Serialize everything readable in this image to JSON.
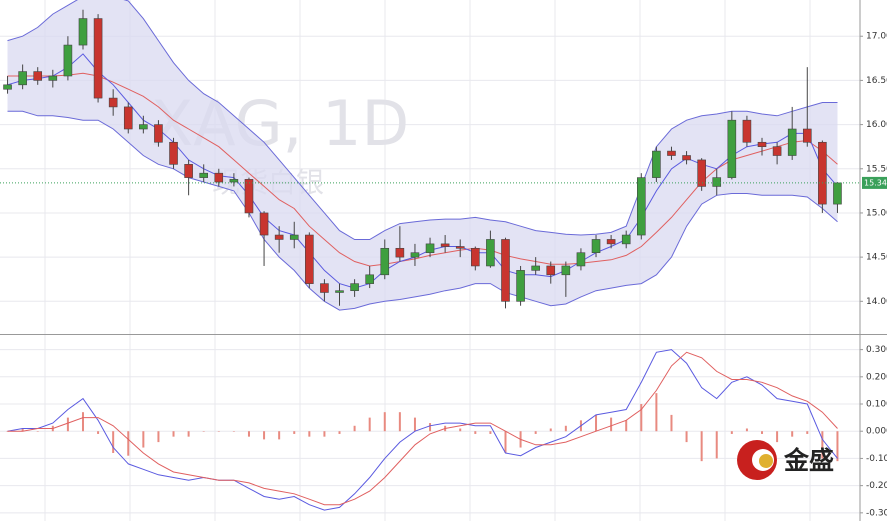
{
  "chart_data": [
    {
      "type": "candlestick",
      "title": "XAG, 1D",
      "subtitle": "现货白银",
      "open": [
        16.4,
        16.45,
        16.6,
        16.5,
        16.55,
        16.9,
        17.2,
        16.3,
        16.2,
        15.95,
        16.0,
        15.8,
        15.55,
        15.4,
        15.45,
        15.35,
        15.38,
        15.0,
        14.75,
        14.7,
        14.75,
        14.2,
        14.1,
        14.12,
        14.2,
        14.3,
        14.6,
        14.5,
        14.55,
        14.65,
        14.62,
        14.6,
        14.4,
        14.7,
        14.0,
        14.35,
        14.4,
        14.3,
        14.4,
        14.55,
        14.7,
        14.65,
        14.75,
        15.4,
        15.7,
        15.65,
        15.6,
        15.3,
        15.4,
        16.05,
        15.8,
        15.75,
        15.65,
        15.95,
        15.8,
        15.1
      ],
      "high": [
        16.55,
        16.68,
        16.65,
        16.62,
        17.0,
        17.3,
        17.25,
        16.4,
        16.25,
        16.1,
        16.05,
        15.85,
        15.6,
        15.55,
        15.5,
        15.45,
        15.4,
        15.02,
        14.85,
        14.9,
        14.78,
        14.25,
        14.2,
        14.25,
        14.4,
        14.7,
        14.85,
        14.65,
        14.72,
        14.75,
        14.7,
        14.62,
        14.8,
        14.72,
        14.4,
        14.5,
        14.45,
        14.45,
        14.6,
        14.75,
        14.75,
        14.8,
        15.45,
        15.75,
        15.75,
        15.7,
        15.62,
        15.5,
        16.15,
        16.1,
        15.85,
        15.8,
        16.2,
        16.65,
        15.82,
        15.35
      ],
      "low": [
        16.35,
        16.4,
        16.45,
        16.42,
        16.5,
        16.85,
        16.25,
        16.1,
        15.9,
        15.9,
        15.75,
        15.5,
        15.2,
        15.35,
        15.3,
        15.3,
        14.95,
        14.4,
        14.55,
        14.6,
        14.15,
        14.0,
        13.95,
        14.05,
        14.15,
        14.25,
        14.45,
        14.4,
        14.5,
        14.55,
        14.5,
        14.35,
        14.38,
        13.92,
        13.95,
        14.3,
        14.2,
        14.05,
        14.35,
        14.5,
        14.6,
        14.6,
        14.7,
        15.35,
        15.6,
        15.55,
        15.25,
        15.2,
        15.38,
        15.75,
        15.65,
        15.55,
        15.6,
        15.75,
        15.0,
        15.0
      ],
      "close": [
        16.45,
        16.6,
        16.5,
        16.55,
        16.9,
        17.2,
        16.3,
        16.2,
        15.95,
        16.0,
        15.8,
        15.55,
        15.4,
        15.45,
        15.35,
        15.38,
        15.0,
        14.75,
        14.7,
        14.75,
        14.2,
        14.1,
        14.12,
        14.2,
        14.3,
        14.6,
        14.5,
        14.55,
        14.65,
        14.62,
        14.6,
        14.4,
        14.7,
        14.0,
        14.35,
        14.4,
        14.3,
        14.4,
        14.55,
        14.7,
        14.65,
        14.75,
        15.4,
        15.7,
        15.65,
        15.6,
        15.3,
        15.4,
        16.05,
        15.8,
        15.75,
        15.65,
        15.95,
        15.8,
        15.1,
        15.34
      ],
      "upper": [
        16.95,
        17.0,
        17.1,
        17.25,
        17.35,
        17.45,
        17.45,
        17.45,
        17.4,
        17.2,
        16.95,
        16.7,
        16.5,
        16.35,
        16.25,
        16.1,
        15.95,
        15.8,
        15.6,
        15.4,
        15.2,
        15.0,
        14.8,
        14.7,
        14.7,
        14.8,
        14.88,
        14.9,
        14.92,
        14.93,
        14.93,
        14.95,
        14.92,
        14.9,
        14.85,
        14.8,
        14.78,
        14.76,
        14.75,
        14.76,
        14.78,
        14.85,
        15.3,
        15.75,
        15.95,
        16.05,
        16.1,
        16.12,
        16.15,
        16.15,
        16.12,
        16.1,
        16.15,
        16.2,
        16.25,
        16.25
      ],
      "middle": [
        16.55,
        16.55,
        16.55,
        16.55,
        16.56,
        16.58,
        16.55,
        16.48,
        16.4,
        16.32,
        16.2,
        16.05,
        15.95,
        15.85,
        15.75,
        15.6,
        15.45,
        15.3,
        15.15,
        15.05,
        14.85,
        14.7,
        14.55,
        14.45,
        14.4,
        14.42,
        14.45,
        14.48,
        14.52,
        14.55,
        14.58,
        14.6,
        14.58,
        14.52,
        14.48,
        14.45,
        14.42,
        14.42,
        14.43,
        14.45,
        14.47,
        14.52,
        14.62,
        14.78,
        14.95,
        15.15,
        15.35,
        15.5,
        15.6,
        15.65,
        15.7,
        15.75,
        15.8,
        15.82,
        15.7,
        15.55
      ],
      "lower": [
        16.15,
        16.15,
        16.1,
        16.1,
        16.08,
        16.05,
        16.05,
        15.95,
        15.8,
        15.65,
        15.55,
        15.5,
        15.4,
        15.35,
        15.3,
        15.25,
        15.0,
        14.7,
        14.5,
        14.35,
        14.15,
        14.0,
        13.9,
        13.92,
        13.97,
        14.0,
        14.02,
        14.05,
        14.08,
        14.12,
        14.15,
        14.2,
        14.2,
        14.1,
        14.05,
        14.0,
        13.95,
        13.97,
        14.05,
        14.12,
        14.15,
        14.18,
        14.2,
        14.3,
        14.5,
        14.85,
        15.1,
        15.2,
        15.22,
        15.22,
        15.2,
        15.2,
        15.2,
        15.18,
        15.05,
        14.9
      ],
      "fast": [
        16.45,
        16.5,
        16.52,
        16.55,
        16.65,
        16.8,
        16.6,
        16.45,
        16.25,
        16.05,
        15.95,
        15.8,
        15.6,
        15.5,
        15.42,
        15.4,
        15.2,
        14.95,
        14.8,
        14.75,
        14.55,
        14.35,
        14.2,
        14.15,
        14.2,
        14.35,
        14.45,
        14.5,
        14.58,
        14.62,
        14.62,
        14.55,
        14.55,
        14.35,
        14.3,
        14.3,
        14.28,
        14.35,
        14.45,
        14.55,
        14.62,
        14.7,
        14.95,
        15.25,
        15.5,
        15.62,
        15.55,
        15.5,
        15.65,
        15.75,
        15.78,
        15.8,
        15.9,
        15.9,
        15.5,
        15.3
      ],
      "up_color": "#3f9f3f",
      "down_color": "#c8352f",
      "band_color": "#6a6ad8",
      "band_fill": "#d9d9f0",
      "middle_color": "#e06060",
      "fast_color": "#5a5ae0",
      "last_price": 15.34,
      "last_color": "#3aa05a",
      "ylim": [
        13.63,
        17.41
      ],
      "yticks": [
        {
          "value": 14,
          "label": "14.00"
        },
        {
          "value": 14.5,
          "label": "14.50"
        },
        {
          "value": 15,
          "label": "15.00"
        },
        {
          "value": 15.5,
          "label": "15.50"
        },
        {
          "value": 16,
          "label": "16.00"
        },
        {
          "value": 16.5,
          "label": "16.50"
        },
        {
          "value": 17,
          "label": "17.00"
        }
      ],
      "grid": true
    },
    {
      "type": "macd",
      "series": [
        {
          "color": "#5a5ae0",
          "values": [
            0.0,
            0.01,
            0.01,
            0.03,
            0.08,
            0.12,
            0.04,
            -0.06,
            -0.12,
            -0.14,
            -0.16,
            -0.17,
            -0.18,
            -0.17,
            -0.18,
            -0.18,
            -0.21,
            -0.24,
            -0.25,
            -0.24,
            -0.27,
            -0.29,
            -0.28,
            -0.23,
            -0.17,
            -0.1,
            -0.04,
            0.0,
            0.02,
            0.03,
            0.03,
            0.02,
            0.02,
            -0.08,
            -0.09,
            -0.06,
            -0.04,
            -0.02,
            0.02,
            0.06,
            0.07,
            0.08,
            0.18,
            0.29,
            0.3,
            0.25,
            0.16,
            0.12,
            0.18,
            0.2,
            0.17,
            0.12,
            0.11,
            0.1,
            -0.03,
            -0.1
          ]
        },
        {
          "color": "#e06060",
          "values": [
            0.0,
            0.0,
            0.01,
            0.01,
            0.03,
            0.05,
            0.05,
            0.02,
            -0.03,
            -0.08,
            -0.12,
            -0.15,
            -0.16,
            -0.17,
            -0.18,
            -0.18,
            -0.19,
            -0.21,
            -0.22,
            -0.23,
            -0.25,
            -0.27,
            -0.27,
            -0.25,
            -0.22,
            -0.17,
            -0.11,
            -0.05,
            -0.01,
            0.01,
            0.02,
            0.03,
            0.03,
            0.0,
            -0.03,
            -0.05,
            -0.05,
            -0.04,
            -0.02,
            0.0,
            0.02,
            0.04,
            0.08,
            0.15,
            0.24,
            0.29,
            0.27,
            0.22,
            0.19,
            0.19,
            0.18,
            0.16,
            0.13,
            0.11,
            0.07,
            0.01
          ]
        }
      ],
      "histogram": {
        "color": "#e88a80",
        "values": [
          0.0,
          0.01,
          0.0,
          0.02,
          0.05,
          0.07,
          -0.01,
          -0.08,
          -0.09,
          -0.06,
          -0.04,
          -0.02,
          -0.02,
          0.0,
          0.0,
          0.0,
          -0.02,
          -0.03,
          -0.03,
          -0.01,
          -0.02,
          -0.02,
          -0.01,
          0.02,
          0.05,
          0.07,
          0.07,
          0.05,
          0.03,
          0.02,
          0.01,
          -0.01,
          -0.01,
          -0.08,
          -0.06,
          -0.01,
          0.01,
          0.02,
          0.04,
          0.06,
          0.05,
          0.04,
          0.1,
          0.14,
          0.06,
          -0.04,
          -0.11,
          -0.1,
          -0.01,
          0.01,
          -0.01,
          -0.04,
          -0.02,
          -0.01,
          -0.1,
          -0.11
        ]
      },
      "ylim": [
        -0.33,
        0.35
      ],
      "yticks": [
        {
          "value": 0.3,
          "label": "0.300"
        },
        {
          "value": 0.2,
          "label": "0.200"
        },
        {
          "value": 0.1,
          "label": "0.100"
        },
        {
          "value": 0,
          "label": "0.000"
        },
        {
          "value": -0.1,
          "label": "-0.10"
        },
        {
          "value": -0.2,
          "label": "-0.20"
        },
        {
          "value": -0.3,
          "label": "-0.30"
        }
      ],
      "grid": true
    }
  ],
  "logo": {
    "text": "金盛"
  }
}
